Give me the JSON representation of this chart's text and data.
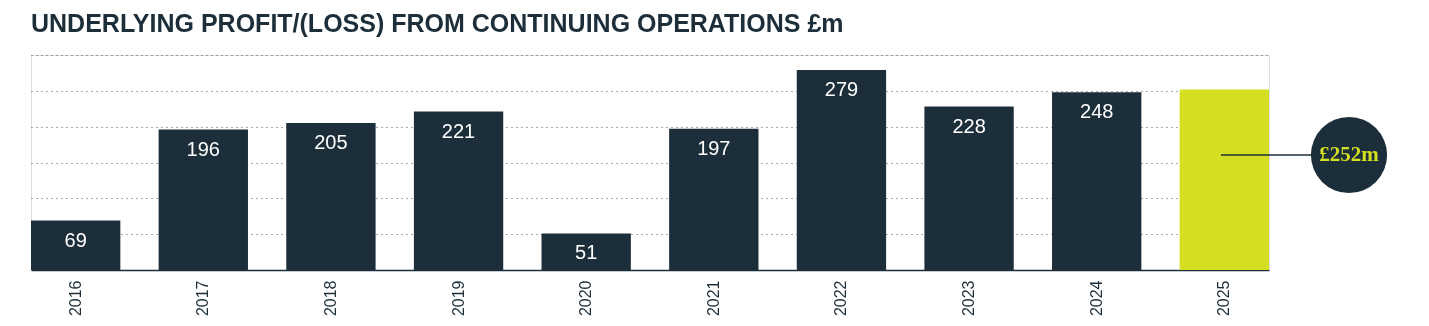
{
  "chart_data": {
    "type": "bar",
    "title": "UNDERLYING PROFIT/(LOSS) FROM CONTINUING OPERATIONS £m",
    "categories": [
      "2016",
      "2017",
      "2018",
      "2019",
      "2020",
      "2021",
      "2022",
      "2023",
      "2024",
      "2025"
    ],
    "values": [
      69,
      196,
      205,
      221,
      51,
      197,
      279,
      228,
      248,
      252
    ],
    "value_labels": [
      "69",
      "196",
      "205",
      "221",
      "51",
      "197",
      "279",
      "228",
      "248",
      null
    ],
    "colors": [
      "#1c2e3a",
      "#1c2e3a",
      "#1c2e3a",
      "#1c2e3a",
      "#1c2e3a",
      "#1c2e3a",
      "#1c2e3a",
      "#1c2e3a",
      "#1c2e3a",
      "#d4df22"
    ],
    "annotations": [
      "£252m"
    ],
    "ylim": [
      0,
      300
    ],
    "yticks": [
      {
        "value": 50,
        "label": null
      },
      {
        "value": 100,
        "label": null
      },
      {
        "value": 150,
        "label": null
      },
      {
        "value": 200,
        "label": null
      },
      {
        "value": 250,
        "label": null
      },
      {
        "value": 300,
        "label": null
      }
    ],
    "tick_labels": "x",
    "grid": "y",
    "legend": false
  }
}
